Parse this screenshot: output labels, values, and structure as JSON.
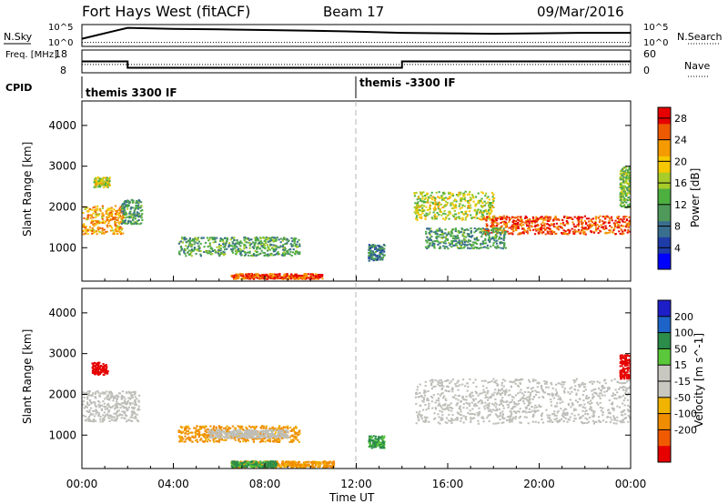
{
  "header": {
    "radar": "Fort Hays West (fitACF)",
    "beam": "Beam 17",
    "date": "09/Mar/2016"
  },
  "colors": {
    "power_scale": [
      "#0000ff",
      "#1e3ca8",
      "#3a6e8f",
      "#4f9a5a",
      "#4caf3f",
      "#a8cc2a",
      "#f5c800",
      "#f59a00",
      "#ee5a00",
      "#e60000"
    ],
    "velocity_scale": [
      "#1e1ec8",
      "#1e64c8",
      "#2c8c4a",
      "#5ac83a",
      "#c8c8c0",
      "#c8c8c0",
      "#f0b400",
      "#f08c00",
      "#f05a00",
      "#e60000"
    ],
    "ground_scatter": "#bebeb8"
  },
  "chart_data": [
    {
      "panel": "noise",
      "type": "line",
      "ylabel_left": "N.Sky",
      "ylabel_right": "N.Search",
      "left_ticks": [
        "10^5",
        "10^0"
      ],
      "right_ticks": [
        "10^5",
        "10^0"
      ],
      "x": [
        0,
        2,
        4,
        6,
        8,
        10,
        12,
        14,
        16,
        18,
        20,
        22,
        24
      ],
      "sky_level": [
        0.35,
        0.85,
        0.8,
        0.78,
        0.75,
        0.72,
        0.68,
        0.62,
        0.6,
        0.58,
        0.6,
        0.62,
        0.62
      ],
      "search_level": [
        0.1,
        0.1,
        0.1,
        0.1,
        0.1,
        0.1,
        0.1,
        0.1,
        0.1,
        0.1,
        0.1,
        0.1,
        0.1
      ]
    },
    {
      "panel": "frequency",
      "type": "line",
      "ylabel_left": "Freq. [MHz]",
      "ylabel_right": "Nave",
      "left_ticks": [
        "18",
        "8"
      ],
      "right_ticks": [
        "60",
        "0"
      ],
      "freq_steps": [
        {
          "t0": 0,
          "t1": 2,
          "freq": 13.0
        },
        {
          "t0": 2,
          "t1": 14,
          "freq": 10.2
        },
        {
          "t0": 14,
          "t1": 24,
          "freq": 13.0
        }
      ],
      "nave": 22
    },
    {
      "panel": "cpid",
      "ylabel": "CPID",
      "segments": [
        {
          "t0": 0,
          "t1": 12,
          "label": "themis 3300 IF"
        },
        {
          "t0": 12,
          "t1": 24,
          "label": "themis -3300 IF"
        }
      ]
    },
    {
      "panel": "power",
      "type": "heatmap",
      "ylabel": "Slant Range [km]",
      "colorbar_label": "Power [dB]",
      "colorbar_ticks": [
        "4",
        "8",
        "12",
        "16",
        "20",
        "24",
        "28"
      ],
      "colorbar_range": [
        0,
        30
      ],
      "yticks": [
        "1000",
        "2000",
        "3000",
        "4000"
      ],
      "ylim": [
        180,
        4600
      ],
      "xlim": [
        0,
        24
      ],
      "scatter_regions": [
        {
          "t0": 0.0,
          "t1": 1.8,
          "r0": 1350,
          "r1": 2050,
          "value": 22
        },
        {
          "t0": 0.5,
          "t1": 1.2,
          "r0": 2500,
          "r1": 2750,
          "value": 18
        },
        {
          "t0": 1.7,
          "t1": 2.6,
          "r0": 1600,
          "r1": 2200,
          "value": 11
        },
        {
          "t0": 4.2,
          "t1": 9.5,
          "r0": 820,
          "r1": 1280,
          "value": 12
        },
        {
          "t0": 6.5,
          "t1": 10.5,
          "r0": 250,
          "r1": 380,
          "value": 26
        },
        {
          "t0": 12.5,
          "t1": 13.2,
          "r0": 700,
          "r1": 1100,
          "value": 9
        },
        {
          "t0": 14.5,
          "t1": 18.0,
          "r0": 1700,
          "r1": 2400,
          "value": 17
        },
        {
          "t0": 17.5,
          "t1": 24.0,
          "r0": 1350,
          "r1": 1800,
          "value": 26
        },
        {
          "t0": 15.0,
          "t1": 18.5,
          "r0": 1000,
          "r1": 1500,
          "value": 11
        },
        {
          "t0": 23.5,
          "t1": 24.0,
          "r0": 2000,
          "r1": 3000,
          "value": 14
        }
      ]
    },
    {
      "panel": "velocity",
      "type": "heatmap",
      "ylabel": "Slant Range [km]",
      "colorbar_label": "Velocity [m s^-1]",
      "colorbar_ticks": [
        "200",
        "100",
        "50",
        "15",
        "-15",
        "-50",
        "-100",
        "-200"
      ],
      "yticks": [
        "1000",
        "2000",
        "3000",
        "4000"
      ],
      "ylim": [
        180,
        4600
      ],
      "xlim": [
        0,
        24
      ],
      "scatter_regions": [
        {
          "t0": 0.0,
          "t1": 2.5,
          "r0": 1350,
          "r1": 2100,
          "value": "ground"
        },
        {
          "t0": 0.4,
          "t1": 1.1,
          "r0": 2500,
          "r1": 2800,
          "value": -200
        },
        {
          "t0": 4.2,
          "t1": 9.5,
          "r0": 850,
          "r1": 1250,
          "value": -60
        },
        {
          "t0": 5.5,
          "t1": 9.0,
          "r0": 950,
          "r1": 1150,
          "value": "ground"
        },
        {
          "t0": 6.5,
          "t1": 11.0,
          "r0": 230,
          "r1": 380,
          "value": -60
        },
        {
          "t0": 6.5,
          "t1": 8.5,
          "r0": 230,
          "r1": 380,
          "value": 40
        },
        {
          "t0": 12.5,
          "t1": 13.2,
          "r0": 700,
          "r1": 1000,
          "value": 40
        },
        {
          "t0": 14.5,
          "t1": 24.0,
          "r0": 1300,
          "r1": 2400,
          "value": "ground"
        },
        {
          "t0": 23.5,
          "t1": 24.0,
          "r0": 2400,
          "r1": 3000,
          "value": -200
        }
      ]
    }
  ],
  "xaxis": {
    "ticks": [
      "00:00",
      "04:00",
      "08:00",
      "12:00",
      "16:00",
      "20:00",
      "00:00"
    ],
    "label": "Time UT"
  }
}
